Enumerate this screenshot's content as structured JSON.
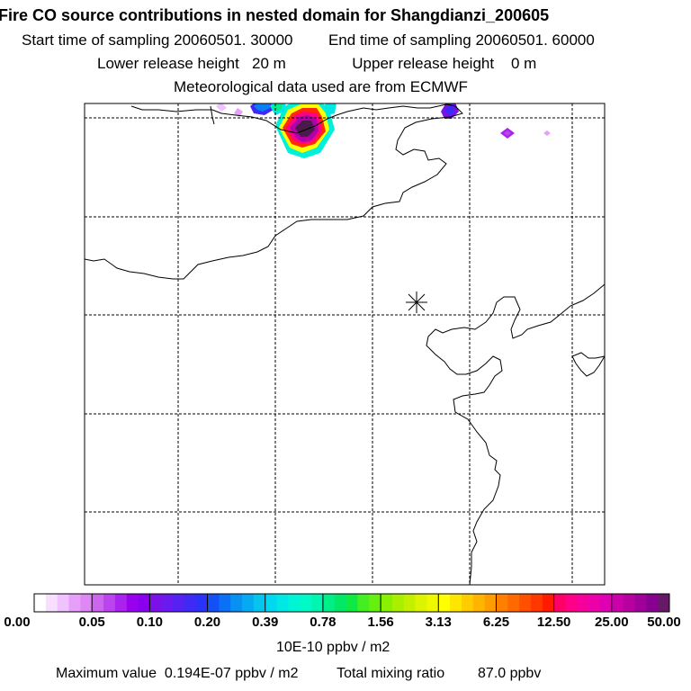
{
  "header": {
    "title": "Fire CO source contributions in nested domain for Shangdianzi_200605",
    "start_label": "Start time of sampling",
    "start_value": "20060501. 30000",
    "end_label": "End time of sampling",
    "end_value": "20060501. 60000",
    "lower_label": "Lower release height",
    "lower_value": "20 m",
    "upper_label": "Upper release height",
    "upper_value": "0 m",
    "met_text": "Meteorological data used are from ECMWF"
  },
  "map": {
    "receptor_marker": "asterisk-receptor-icon",
    "colors": {
      "frame": "#000000",
      "grid": "#000000",
      "coast": "#000000"
    }
  },
  "colorbar": {
    "tick_labels": [
      "0.00",
      "0.05",
      "0.10",
      "0.20",
      "0.39",
      "0.78",
      "1.56",
      "3.13",
      "6.25",
      "12.50",
      "25.00",
      "50.00"
    ],
    "segment_colors": [
      [
        "#ffffff",
        "#f7e0ff",
        "#f0c2ff",
        "#e6a0fa",
        "#dd88f5"
      ],
      [
        "#cc66ee",
        "#bb44ee",
        "#aa22ee",
        "#9900ee",
        "#8800ee"
      ],
      [
        "#7a12e8",
        "#6a1aee",
        "#5522f2",
        "#3f2af5",
        "#2a32f8"
      ],
      [
        "#1450f5",
        "#0a70f5",
        "#0890f2",
        "#06aaf0",
        "#05c4ee"
      ],
      [
        "#00d8f0",
        "#00e8e4",
        "#00f5d6",
        "#00fac6",
        "#00f5b0"
      ],
      [
        "#00ee88",
        "#00e866",
        "#10e844",
        "#44ee22",
        "#66f010"
      ],
      [
        "#88f000",
        "#a8f000",
        "#c4f000",
        "#dcf400",
        "#f0f800"
      ],
      [
        "#ffff00",
        "#ffe600",
        "#ffcc00",
        "#ffb400",
        "#ff9c00"
      ],
      [
        "#ff8000",
        "#ff6a00",
        "#ff5000",
        "#ff3800",
        "#ff1a00"
      ],
      [
        "#ff0066",
        "#ff0088",
        "#f5009c",
        "#ec00aa",
        "#e000b4"
      ],
      [
        "#cc00aa",
        "#b800a0",
        "#a0009a",
        "#880090",
        "#661a66"
      ]
    ],
    "units": "10E-10 ppbv / m2"
  },
  "footer": {
    "max_label": "Maximum value",
    "max_value": "0.194E-07 ppbv / m2",
    "total_label": "Total mixing ratio",
    "total_value": "87.0 ppbv"
  }
}
